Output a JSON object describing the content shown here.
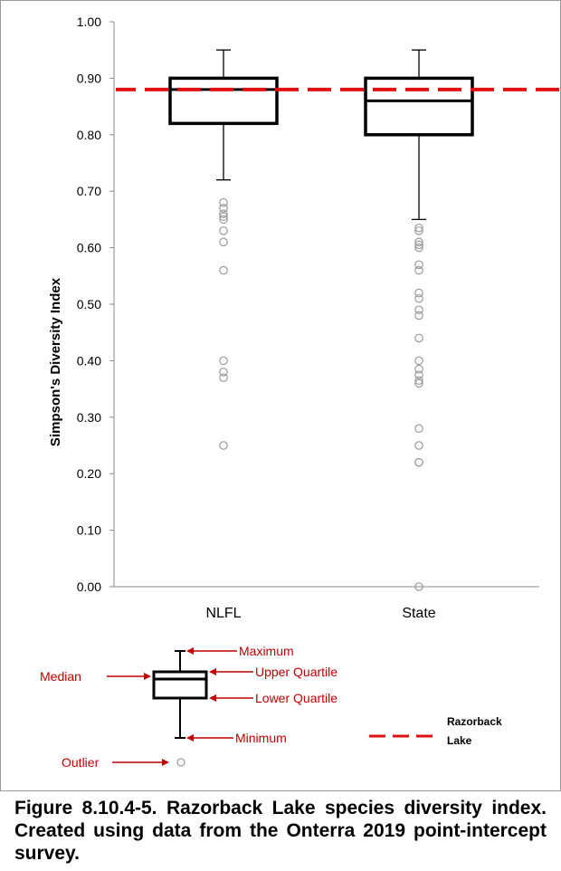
{
  "chart_data": {
    "type": "box",
    "ylabel": "Simpson's Diversity Index",
    "ylim": [
      0,
      1
    ],
    "yticks": [
      "0.00",
      "0.10",
      "0.20",
      "0.30",
      "0.40",
      "0.50",
      "0.60",
      "0.70",
      "0.80",
      "0.90",
      "1.00"
    ],
    "categories": [
      "NLFL",
      "State"
    ],
    "boxes": [
      {
        "category": "NLFL",
        "min": 0.72,
        "q1": 0.82,
        "median": 0.88,
        "q3": 0.9,
        "max": 0.95,
        "outliers": [
          0.68,
          0.67,
          0.66,
          0.655,
          0.65,
          0.63,
          0.61,
          0.56,
          0.4,
          0.38,
          0.37,
          0.25
        ]
      },
      {
        "category": "State",
        "min": 0.65,
        "q1": 0.8,
        "median": 0.86,
        "q3": 0.9,
        "max": 0.95,
        "outliers": [
          0.635,
          0.63,
          0.61,
          0.605,
          0.6,
          0.57,
          0.56,
          0.52,
          0.51,
          0.49,
          0.48,
          0.44,
          0.4,
          0.385,
          0.375,
          0.365,
          0.36,
          0.28,
          0.25,
          0.22,
          0.22,
          0.0
        ]
      }
    ],
    "reference_line": {
      "name": "Razorback Lake",
      "value": 0.88,
      "color": "#e01010",
      "style": "dashed"
    }
  },
  "legend": {
    "maximum": "Maximum",
    "upper_quartile": "Upper Quartile",
    "median": "Median",
    "lower_quartile": "Lower Quartile",
    "minimum": "Minimum",
    "outlier": "Outlier",
    "lake_line_1": "Razorback",
    "lake_line_2": "Lake",
    "annotation_color": "#c00000"
  },
  "caption": "Figure 8.10.4-5. Razorback Lake species diversity index. Created using data from the Onterra 2019 point-intercept survey."
}
